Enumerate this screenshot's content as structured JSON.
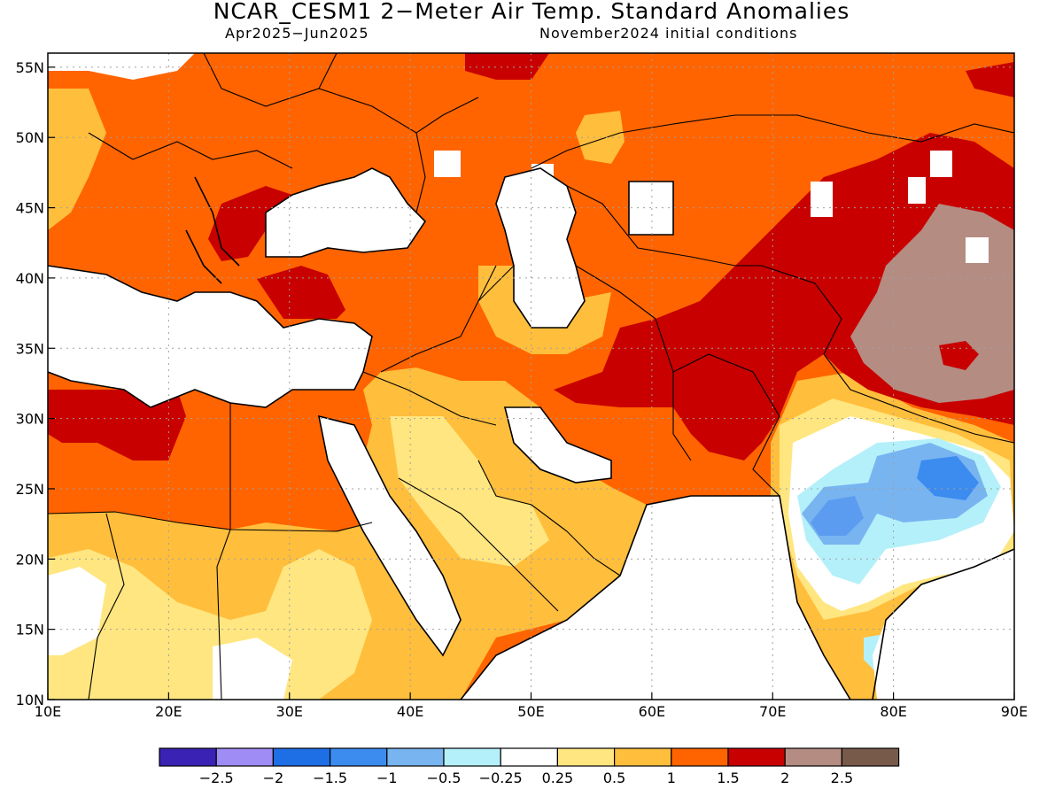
{
  "title": "NCAR_CESM1 2−Meter Air Temp. Standard Anomalies",
  "subtitle_left": "Apr2025−Jun2025",
  "subtitle_right": "November2024 initial conditions",
  "map": {
    "lon_range": [
      10,
      90
    ],
    "lat_range": [
      10,
      56
    ],
    "lon_ticks": [
      "10E",
      "20E",
      "30E",
      "40E",
      "50E",
      "60E",
      "70E",
      "80E",
      "90E"
    ],
    "lat_ticks": [
      "55N",
      "50N",
      "45N",
      "40N",
      "35N",
      "30N",
      "25N",
      "20N",
      "15N",
      "10N"
    ],
    "grid": true
  },
  "legend": {
    "colors": [
      "#3a22b4",
      "#a08cf5",
      "#1e6ee6",
      "#3c8cf0",
      "#78b4f0",
      "#b4f0fa",
      "#ffffff",
      "#ffe680",
      "#ffbe3c",
      "#ff6400",
      "#c80000",
      "#b48c82",
      "#785a4b"
    ],
    "labels": [
      "−2.5",
      "−2",
      "−1.5",
      "−1",
      "−0.5",
      "−0.25",
      "0.25",
      "0.5",
      "1",
      "1.5",
      "2",
      "2.5"
    ]
  }
}
